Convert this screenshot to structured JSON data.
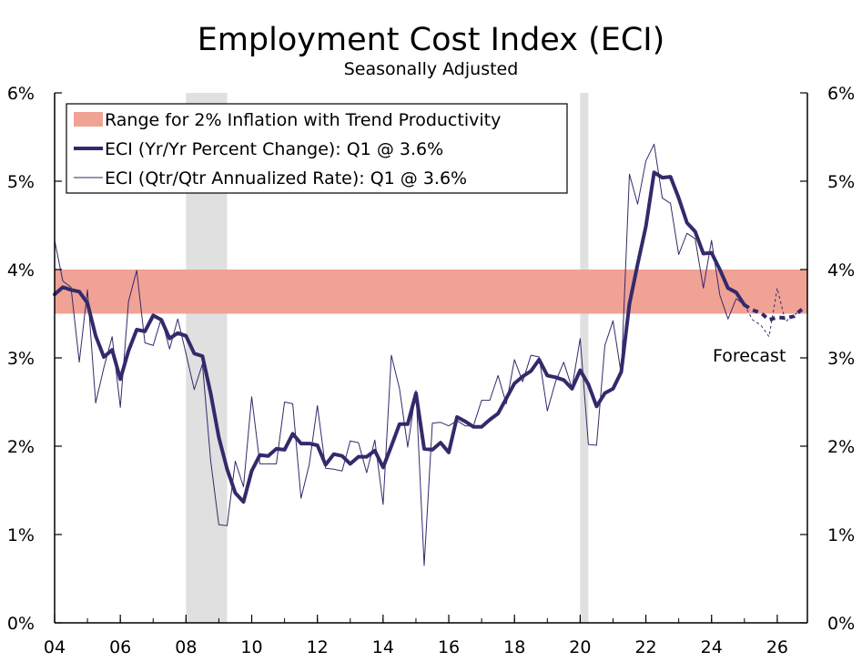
{
  "chart_data": {
    "type": "line",
    "title": "Employment Cost Index (ECI)",
    "subtitle": "Seasonally Adjusted",
    "xlabel": "",
    "ylabel": "",
    "xlim": [
      2004.0,
      2026.917
    ],
    "ylim": [
      0,
      6
    ],
    "y_ticks": [
      0,
      1,
      2,
      3,
      4,
      5,
      6
    ],
    "y_tick_labels": [
      "0%",
      "1%",
      "2%",
      "3%",
      "4%",
      "5%",
      "6%"
    ],
    "x_ticks": [
      2004,
      2006,
      2008,
      2010,
      2012,
      2014,
      2016,
      2018,
      2020,
      2022,
      2024,
      2026
    ],
    "x_tick_labels": [
      "04",
      "06",
      "08",
      "10",
      "12",
      "14",
      "16",
      "18",
      "20",
      "22",
      "24",
      "26"
    ],
    "grid": false,
    "legend_position": "top-left",
    "band": {
      "label": "Range for 2% Inflation with Trend Productivity",
      "y0": 3.5,
      "y1": 4.0,
      "color": "#f0a295"
    },
    "recessions": [
      [
        2008.0,
        2009.25
      ],
      [
        2020.0,
        2020.25
      ]
    ],
    "annotation": {
      "text": "Forecast",
      "x": 2025.75,
      "y": 3.03
    },
    "series": [
      {
        "name": "ECI (Yr/Yr Percent Change): Q1 @ 3.6%",
        "style": "thick",
        "color": "#332a6b",
        "x": [
          2004.0,
          2004.25,
          2004.5,
          2004.75,
          2005.0,
          2005.25,
          2005.5,
          2005.75,
          2006.0,
          2006.25,
          2006.5,
          2006.75,
          2007.0,
          2007.25,
          2007.5,
          2007.75,
          2008.0,
          2008.25,
          2008.5,
          2008.75,
          2009.0,
          2009.25,
          2009.5,
          2009.75,
          2010.0,
          2010.25,
          2010.5,
          2010.75,
          2011.0,
          2011.25,
          2011.5,
          2011.75,
          2012.0,
          2012.25,
          2012.5,
          2012.75,
          2013.0,
          2013.25,
          2013.5,
          2013.75,
          2014.0,
          2014.25,
          2014.5,
          2014.75,
          2015.0,
          2015.25,
          2015.5,
          2015.75,
          2016.0,
          2016.25,
          2016.5,
          2016.75,
          2017.0,
          2017.25,
          2017.5,
          2017.75,
          2018.0,
          2018.25,
          2018.5,
          2018.75,
          2019.0,
          2019.25,
          2019.5,
          2019.75,
          2020.0,
          2020.25,
          2020.5,
          2020.75,
          2021.0,
          2021.25,
          2021.5,
          2021.75,
          2022.0,
          2022.25,
          2022.5,
          2022.75,
          2023.0,
          2023.25,
          2023.5,
          2023.75,
          2024.0,
          2024.25,
          2024.5,
          2024.75,
          2025.0
        ],
        "values": [
          3.72,
          3.8,
          3.77,
          3.75,
          3.62,
          3.25,
          3.01,
          3.09,
          2.76,
          3.08,
          3.32,
          3.3,
          3.48,
          3.43,
          3.22,
          3.28,
          3.25,
          3.05,
          3.02,
          2.6,
          2.1,
          1.74,
          1.47,
          1.37,
          1.72,
          1.9,
          1.89,
          1.97,
          1.96,
          2.14,
          2.03,
          2.03,
          2.01,
          1.79,
          1.91,
          1.89,
          1.8,
          1.88,
          1.88,
          1.95,
          1.76,
          2.0,
          2.25,
          2.25,
          2.6,
          1.97,
          1.96,
          2.04,
          1.93,
          2.33,
          2.28,
          2.22,
          2.22,
          2.3,
          2.37,
          2.54,
          2.71,
          2.79,
          2.85,
          2.98,
          2.8,
          2.78,
          2.75,
          2.65,
          2.86,
          2.7,
          2.45,
          2.6,
          2.65,
          2.84,
          3.61,
          4.06,
          4.49,
          5.1,
          5.04,
          5.05,
          4.81,
          4.53,
          4.43,
          4.18,
          4.19,
          4.0,
          3.79,
          3.74,
          3.6
        ],
        "forecast_x": [
          2025.0,
          2025.25,
          2025.5,
          2025.75,
          2026.0,
          2026.25,
          2026.5,
          2026.75
        ],
        "forecast_values": [
          3.6,
          3.54,
          3.51,
          3.43,
          3.46,
          3.45,
          3.47,
          3.55
        ]
      },
      {
        "name": "ECI (Qtr/Qtr Annualized Rate): Q1 @ 3.6%",
        "style": "thin",
        "color": "#332a6b",
        "x": [
          2004.0,
          2004.25,
          2004.5,
          2004.75,
          2005.0,
          2005.25,
          2005.5,
          2005.75,
          2006.0,
          2006.25,
          2006.5,
          2006.75,
          2007.0,
          2007.25,
          2007.5,
          2007.75,
          2008.0,
          2008.25,
          2008.5,
          2008.75,
          2009.0,
          2009.25,
          2009.5,
          2009.75,
          2010.0,
          2010.25,
          2010.5,
          2010.75,
          2011.0,
          2011.25,
          2011.5,
          2011.75,
          2012.0,
          2012.25,
          2012.5,
          2012.75,
          2013.0,
          2013.25,
          2013.5,
          2013.75,
          2014.0,
          2014.25,
          2014.5,
          2014.75,
          2015.0,
          2015.25,
          2015.5,
          2015.75,
          2016.0,
          2016.25,
          2016.5,
          2016.75,
          2017.0,
          2017.25,
          2017.5,
          2017.75,
          2018.0,
          2018.25,
          2018.5,
          2018.75,
          2019.0,
          2019.25,
          2019.5,
          2019.75,
          2020.0,
          2020.25,
          2020.5,
          2020.75,
          2021.0,
          2021.25,
          2021.5,
          2021.75,
          2022.0,
          2022.25,
          2022.5,
          2022.75,
          2023.0,
          2023.25,
          2023.5,
          2023.75,
          2024.0,
          2024.25,
          2024.5,
          2024.75,
          2025.0
        ],
        "values": [
          4.33,
          3.87,
          3.8,
          2.95,
          3.77,
          2.49,
          2.89,
          3.24,
          2.44,
          3.64,
          3.99,
          3.17,
          3.14,
          3.45,
          3.1,
          3.44,
          3.05,
          2.64,
          2.93,
          1.84,
          1.11,
          1.1,
          1.83,
          1.54,
          2.56,
          1.8,
          1.8,
          1.8,
          2.5,
          2.48,
          1.41,
          1.79,
          2.46,
          1.75,
          1.74,
          1.72,
          2.06,
          2.04,
          1.7,
          2.07,
          1.34,
          3.03,
          2.65,
          1.99,
          2.63,
          0.65,
          2.26,
          2.27,
          2.23,
          2.29,
          2.23,
          2.23,
          2.52,
          2.52,
          2.8,
          2.48,
          2.98,
          2.73,
          3.03,
          3.01,
          2.4,
          2.73,
          2.95,
          2.66,
          3.22,
          2.02,
          2.01,
          3.14,
          3.42,
          2.81,
          5.08,
          4.74,
          5.23,
          5.42,
          4.81,
          4.75,
          4.17,
          4.41,
          4.35,
          3.79,
          4.33,
          3.71,
          3.44,
          3.67,
          3.6
        ],
        "forecast_x": [
          2025.0,
          2025.25,
          2025.5,
          2025.75,
          2026.0,
          2026.25,
          2026.5,
          2026.75
        ],
        "forecast_values": [
          3.6,
          3.43,
          3.37,
          3.24,
          3.79,
          3.41,
          3.48,
          3.55
        ]
      }
    ]
  }
}
